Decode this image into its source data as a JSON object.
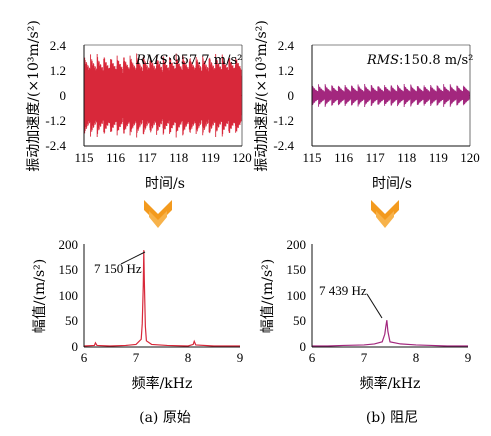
{
  "captions": {
    "left": "(a) 原始",
    "right": "(b) 阻尼"
  },
  "colors": {
    "original": "#d8283a",
    "damped": "#a3277e",
    "arrow": "#f39a1e",
    "axis": "#111111"
  },
  "chart_data": [
    {
      "id": "time-original",
      "type": "line",
      "xlabel": "时间/s",
      "ylabel": "振动加速度/(×10³m/s²)",
      "xlim": [
        115,
        120
      ],
      "ylim": [
        -2.4,
        2.4
      ],
      "xticks": [
        "115",
        "116",
        "117",
        "118",
        "119",
        "120"
      ],
      "yticks": [
        "2.4",
        "1.2",
        "0",
        "-1.2",
        "-2.4"
      ],
      "annotation": {
        "label": "RMS",
        "value": ":957.7 m/s²"
      },
      "envelope": {
        "amplitude_max": 2.0,
        "amplitude_min": 1.3,
        "bursts": 24
      },
      "color": "#d8283a"
    },
    {
      "id": "time-damped",
      "type": "line",
      "xlabel": "时间/s",
      "ylabel": "振动加速度/(×10³m/s²)",
      "xlim": [
        115,
        120
      ],
      "ylim": [
        -2.4,
        2.4
      ],
      "xticks": [
        "115",
        "116",
        "117",
        "118",
        "119",
        "120"
      ],
      "yticks": [
        "2.4",
        "1.2",
        "0",
        "-1.2",
        "-2.4"
      ],
      "annotation": {
        "label": "RMS",
        "value": ":150.8 m/s²"
      },
      "envelope": {
        "amplitude_max": 0.55,
        "amplitude_min": 0.2,
        "bursts": 24
      },
      "color": "#a3277e"
    },
    {
      "id": "spectrum-original",
      "type": "line",
      "xlabel": "频率/kHz",
      "ylabel": "幅值/(m/s²)",
      "xlim": [
        6,
        9
      ],
      "ylim": [
        0,
        200
      ],
      "xticks": [
        "6",
        "7",
        "8",
        "9"
      ],
      "yticks": [
        "200",
        "150",
        "100",
        "50",
        "0"
      ],
      "peak": {
        "x": 7.15,
        "y": 188,
        "label": "7 150 Hz"
      },
      "x": [
        6.0,
        6.2,
        6.22,
        6.25,
        6.5,
        6.8,
        7.0,
        7.1,
        7.12,
        7.14,
        7.15,
        7.16,
        7.18,
        7.2,
        7.3,
        7.6,
        8.0,
        8.1,
        8.12,
        8.15,
        8.5,
        8.8,
        9.0
      ],
      "values": [
        2,
        3,
        8,
        3,
        2,
        3,
        5,
        15,
        45,
        120,
        188,
        130,
        40,
        12,
        5,
        3,
        2,
        5,
        11,
        4,
        2,
        2,
        2
      ],
      "color": "#d8283a"
    },
    {
      "id": "spectrum-damped",
      "type": "line",
      "xlabel": "频率/kHz",
      "ylabel": "幅值/(m/s²)",
      "xlim": [
        6,
        9
      ],
      "ylim": [
        0,
        200
      ],
      "xticks": [
        "6",
        "7",
        "8",
        "9"
      ],
      "yticks": [
        "200",
        "150",
        "100",
        "50",
        "0"
      ],
      "peak": {
        "x": 7.439,
        "y": 52,
        "label": "7 439 Hz"
      },
      "x": [
        6.0,
        6.3,
        6.6,
        7.0,
        7.2,
        7.35,
        7.4,
        7.42,
        7.439,
        7.46,
        7.5,
        7.7,
        8.0,
        8.3,
        8.6,
        9.0
      ],
      "values": [
        2,
        2,
        3,
        4,
        6,
        10,
        25,
        40,
        52,
        30,
        10,
        6,
        4,
        3,
        2,
        2
      ],
      "color": "#a3277e"
    }
  ]
}
